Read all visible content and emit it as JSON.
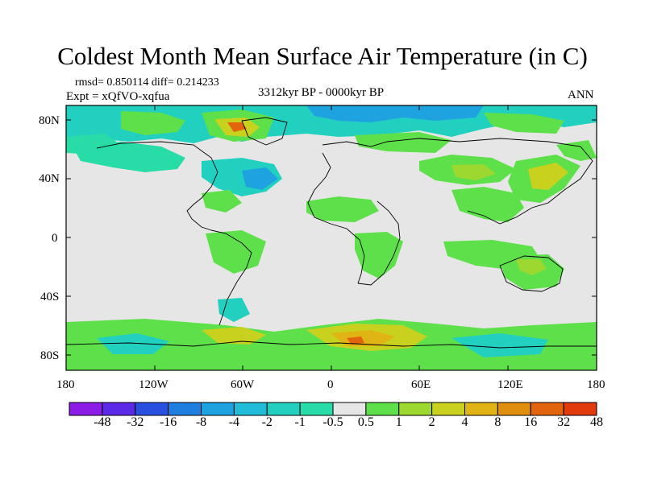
{
  "title": "Coldest Month Mean Surface Air Temperature (in C)",
  "stats_line": "rmsd= 0.850114 diff= 0.214233",
  "expt_line": "Expt = xQfVO-xqfua",
  "period": "3312kyr BP - 0000kyr BP",
  "season": "ANN",
  "y_ticks": [
    "80N",
    "40N",
    "0",
    "40S",
    "80S"
  ],
  "x_ticks": [
    "180",
    "120W",
    "60W",
    "0",
    "60E",
    "120E",
    "180"
  ],
  "colorbar": {
    "colors": [
      "#8c1de6",
      "#5b29e8",
      "#2a4fe0",
      "#1f7fe0",
      "#1ea2e0",
      "#20bcd8",
      "#22d0c0",
      "#28dca8",
      "#e6e6e6",
      "#5ee04a",
      "#9cd830",
      "#c8d21e",
      "#e0b414",
      "#e08e0e",
      "#e2640c",
      "#e23a0a"
    ],
    "labels": [
      "-48",
      "-32",
      "-16",
      "-8",
      "-4",
      "-2",
      "-1",
      "-0.5",
      "0.5",
      "1",
      "2",
      "4",
      "8",
      "16",
      "32",
      "48"
    ]
  }
}
